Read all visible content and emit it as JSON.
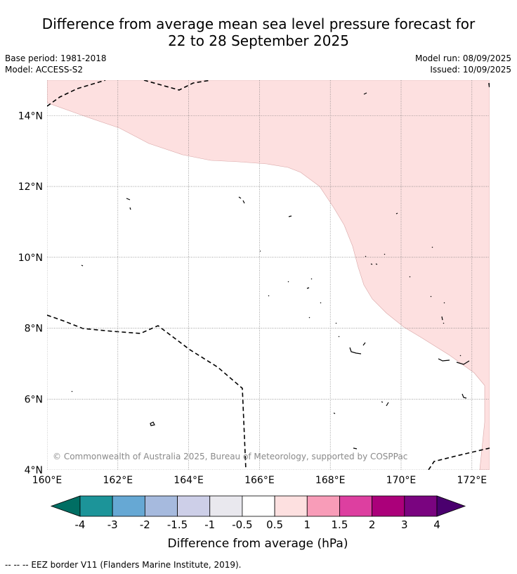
{
  "title_line1": "Difference from average mean sea level pressure forecast for",
  "title_line2": "22 to 28 September 2025",
  "base_period": "Base period: 1981-2018",
  "model": "Model: ACCESS-S2",
  "model_run": "Model run: 08/09/2025",
  "issued": "Issued: 10/09/2025",
  "copyright": "© Commonwealth of Australia 2025, Bureau of Meteorology, supported by COSPPac",
  "map": {
    "lon_range": [
      160,
      172.5
    ],
    "lat_range": [
      4,
      15
    ],
    "lon_ticks": [
      "160°E",
      "162°E",
      "164°E",
      "166°E",
      "168°E",
      "170°E",
      "172°E"
    ],
    "lat_ticks": [
      "4°N",
      "6°N",
      "8°N",
      "10°N",
      "12°N",
      "14°N"
    ]
  },
  "colorbar": {
    "labels": [
      "-4",
      "-3",
      "-2",
      "-1.5",
      "-1",
      "-0.5",
      "0.5",
      "1",
      "1.5",
      "2",
      "3",
      "4"
    ],
    "colors": [
      "#006e63",
      "#1c9499",
      "#66a8d4",
      "#a6bade",
      "#cdcfe8",
      "#e9e8ee",
      "#ffffff",
      "#fde0e0",
      "#f89cb8",
      "#dd3fa0",
      "#ab007a",
      "#7a0480",
      "#4a006e"
    ],
    "title": "Difference from average (hPa)"
  },
  "footer": "--  --  -- EEZ border V11 (Flanders Marine Institute, 2019)."
}
